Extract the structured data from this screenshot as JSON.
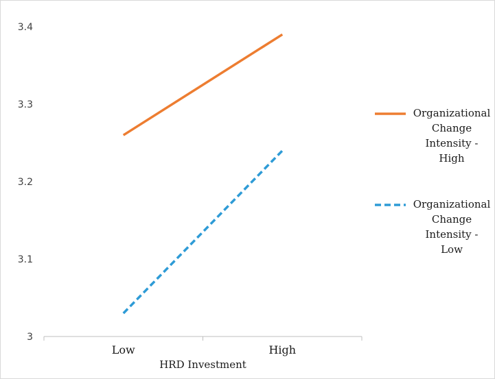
{
  "chart_data": {
    "type": "line",
    "title": "",
    "xlabel": "HRD Investment",
    "ylabel": "",
    "categories": [
      "Low",
      "High"
    ],
    "ylim": [
      3,
      3.4
    ],
    "yticks": [
      "3",
      "3.1",
      "3.2",
      "3.3",
      "3.4"
    ],
    "grid": false,
    "legend_position": "right",
    "series": [
      {
        "name": "Organizational Change Intensity - High",
        "legend_lines": [
          "Organizational",
          "Change",
          "Intensity -",
          "High"
        ],
        "values": [
          3.26,
          3.39
        ],
        "color": "#ED7D31",
        "dash": "solid"
      },
      {
        "name": "Organizational Change Intensity - Low",
        "legend_lines": [
          "Organizational",
          "Change",
          "Intensity -",
          "Low"
        ],
        "values": [
          3.03,
          3.24
        ],
        "color": "#2E9BD6",
        "dash": "dashed"
      }
    ]
  }
}
